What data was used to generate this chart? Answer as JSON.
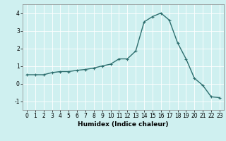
{
  "x": [
    0,
    1,
    2,
    3,
    4,
    5,
    6,
    7,
    8,
    9,
    10,
    11,
    12,
    13,
    14,
    15,
    16,
    17,
    18,
    19,
    20,
    21,
    22,
    23
  ],
  "y": [
    0.5,
    0.5,
    0.5,
    0.62,
    0.68,
    0.68,
    0.75,
    0.8,
    0.88,
    1.0,
    1.1,
    1.4,
    1.4,
    1.85,
    3.5,
    3.8,
    4.0,
    3.6,
    2.3,
    1.4,
    0.3,
    -0.1,
    -0.75,
    -0.8
  ],
  "line_color": "#2d6e6e",
  "marker": "+",
  "marker_size": 3,
  "bg_color": "#cff0f0",
  "grid_color": "#ffffff",
  "xlabel": "Humidex (Indice chaleur)",
  "xlim": [
    -0.5,
    23.5
  ],
  "ylim": [
    -1.5,
    4.5
  ],
  "yticks": [
    -1,
    0,
    1,
    2,
    3,
    4
  ],
  "xticks": [
    0,
    1,
    2,
    3,
    4,
    5,
    6,
    7,
    8,
    9,
    10,
    11,
    12,
    13,
    14,
    15,
    16,
    17,
    18,
    19,
    20,
    21,
    22,
    23
  ],
  "xlabel_fontsize": 6.5,
  "tick_fontsize": 5.5,
  "line_width": 1.0
}
